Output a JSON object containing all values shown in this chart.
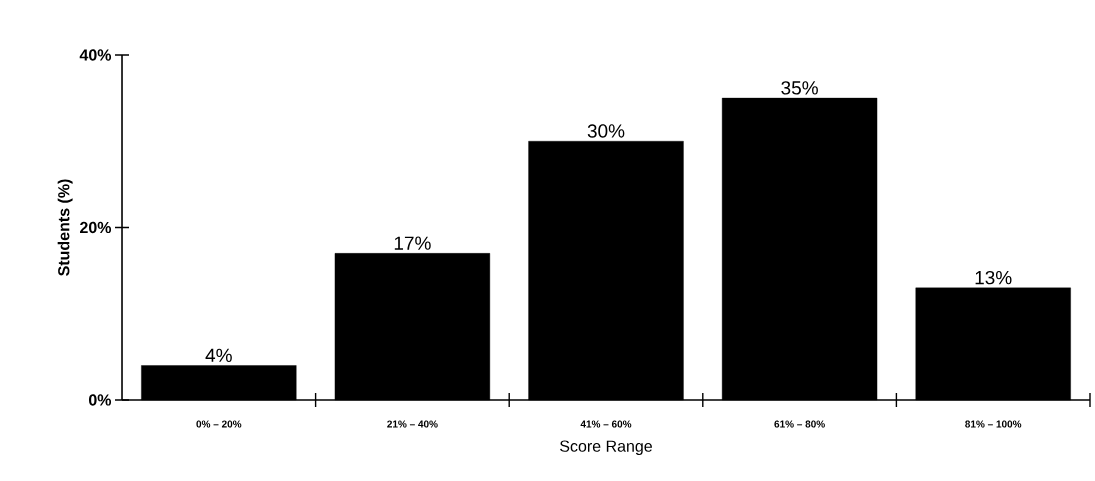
{
  "chart_data": {
    "type": "bar",
    "xlabel": "Score Range",
    "ylabel": "Students  (%)",
    "categories": [
      "0% – 20%",
      "21% – 40%",
      "41% – 60%",
      "61% – 80%",
      "81% – 100%"
    ],
    "values": [
      4,
      17,
      30,
      35,
      13
    ],
    "value_labels": [
      "4%",
      "17%",
      "30%",
      "35%",
      "13%"
    ],
    "color": "#000000",
    "ylim": [
      0,
      40
    ],
    "yticks": [
      {
        "value": 0,
        "label": "0%"
      },
      {
        "value": 20,
        "label": "20%"
      },
      {
        "value": 40,
        "label": "40%"
      }
    ],
    "grid": false
  }
}
